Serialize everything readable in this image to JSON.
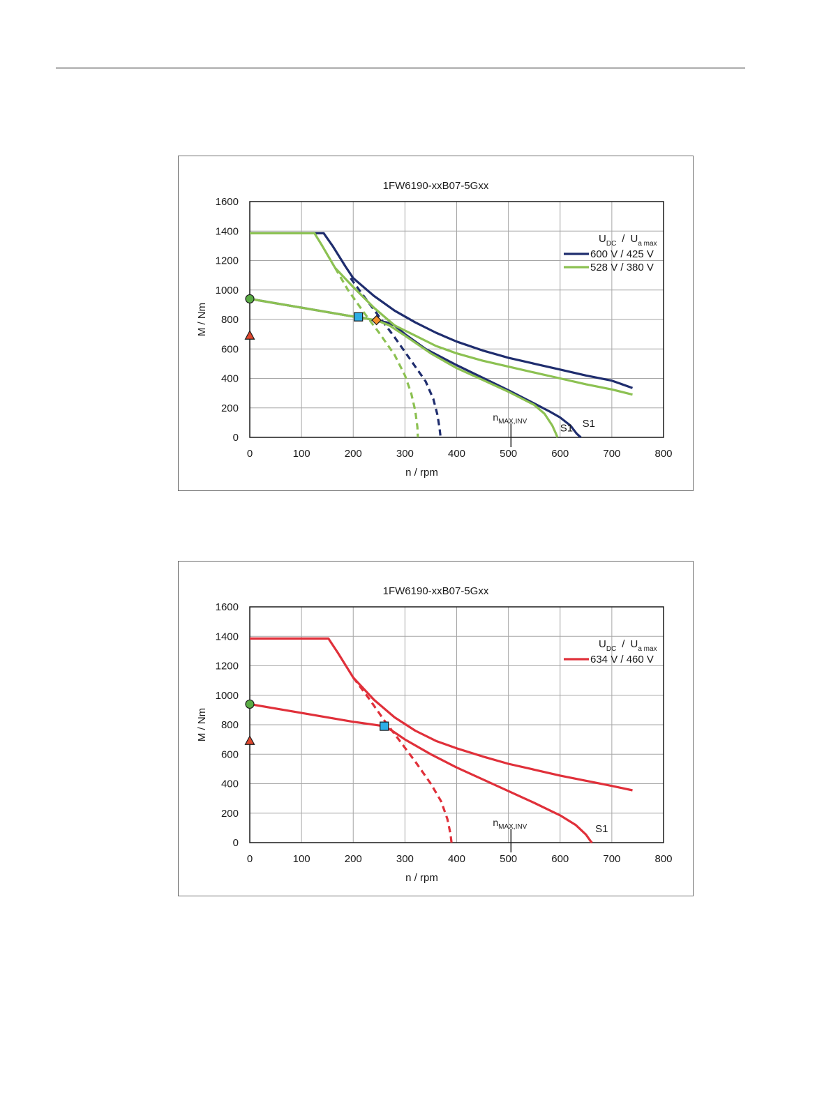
{
  "chart_data": [
    {
      "type": "line",
      "title": "1FW6190-xxB07-5Gxx",
      "xlabel": "n / rpm",
      "ylabel": "M / Nm",
      "xlim": [
        0,
        800
      ],
      "ylim": [
        0,
        1600
      ],
      "xticks": [
        0,
        100,
        200,
        300,
        400,
        500,
        600,
        700,
        800
      ],
      "yticks": [
        0,
        200,
        400,
        600,
        800,
        1000,
        1200,
        1400,
        1600
      ],
      "grid": true,
      "legend": {
        "placement": "top-right",
        "header_main": "U",
        "header_sub": "DC",
        "header_sep": "/",
        "header_main2": "U",
        "header_sub2": "a max"
      },
      "series": [
        {
          "name": "600 V / 425 V",
          "color": "#1f2d6e",
          "curves": [
            {
              "style": "solid",
              "points": [
                [
                  0,
                  1385
                ],
                [
                  143,
                  1385
                ],
                [
                  160,
                  1300
                ],
                [
                  185,
                  1160
                ],
                [
                  200,
                  1080
                ],
                [
                  240,
                  960
                ],
                [
                  280,
                  860
                ],
                [
                  320,
                  780
                ],
                [
                  360,
                  710
                ],
                [
                  400,
                  650
                ],
                [
                  450,
                  590
                ],
                [
                  500,
                  540
                ],
                [
                  550,
                  500
                ],
                [
                  600,
                  460
                ],
                [
                  650,
                  420
                ],
                [
                  700,
                  385
                ],
                [
                  740,
                  335
                ]
              ]
            },
            {
              "style": "solid",
              "points": [
                [
                  0,
                  940
                ],
                [
                  100,
                  880
                ],
                [
                  200,
                  820
                ],
                [
                  210,
                  818
                ],
                [
                  240,
                  795
                ],
                [
                  265,
                  780
                ],
                [
                  280,
                  760
                ],
                [
                  300,
                  700
                ],
                [
                  340,
                  600
                ],
                [
                  400,
                  490
                ],
                [
                  450,
                  405
                ],
                [
                  500,
                  320
                ],
                [
                  550,
                  230
                ],
                [
                  580,
                  175
                ],
                [
                  600,
                  135
                ],
                [
                  620,
                  80
                ],
                [
                  632,
                  25
                ],
                [
                  640,
                  0
                ]
              ]
            },
            {
              "style": "dashed",
              "points": [
                [
                  195,
                  1080
                ],
                [
                  220,
                  960
                ],
                [
                  250,
                  820
                ],
                [
                  280,
                  680
                ],
                [
                  310,
                  530
                ],
                [
                  340,
                  380
                ],
                [
                  355,
                  260
                ],
                [
                  363,
                  150
                ],
                [
                  367,
                  60
                ],
                [
                  369,
                  0
                ]
              ]
            }
          ]
        },
        {
          "name": "528 V / 380 V",
          "color": "#8cc152",
          "curves": [
            {
              "style": "solid",
              "points": [
                [
                  0,
                  1385
                ],
                [
                  125,
                  1385
                ],
                [
                  140,
                  1300
                ],
                [
                  165,
                  1150
                ],
                [
                  200,
                  1020
                ],
                [
                  240,
                  880
                ],
                [
                  280,
                  760
                ],
                [
                  320,
                  690
                ],
                [
                  360,
                  620
                ],
                [
                  400,
                  570
                ],
                [
                  450,
                  520
                ],
                [
                  500,
                  480
                ],
                [
                  550,
                  440
                ],
                [
                  600,
                  400
                ],
                [
                  650,
                  360
                ],
                [
                  700,
                  325
                ],
                [
                  740,
                  290
                ]
              ]
            },
            {
              "style": "solid",
              "points": [
                [
                  0,
                  940
                ],
                [
                  100,
                  880
                ],
                [
                  200,
                  820
                ],
                [
                  245,
                  795
                ],
                [
                  270,
                  760
                ],
                [
                  300,
                  690
                ],
                [
                  350,
                  570
                ],
                [
                  400,
                  470
                ],
                [
                  450,
                  390
                ],
                [
                  500,
                  310
                ],
                [
                  550,
                  220
                ],
                [
                  570,
                  160
                ],
                [
                  585,
                  80
                ],
                [
                  592,
                  25
                ],
                [
                  595,
                  0
                ]
              ]
            },
            {
              "style": "dashed",
              "points": [
                [
                  165,
                  1150
                ],
                [
                  190,
                  1000
                ],
                [
                  220,
                  850
                ],
                [
                  250,
                  710
                ],
                [
                  280,
                  560
                ],
                [
                  300,
                  420
                ],
                [
                  312,
                  300
                ],
                [
                  320,
                  180
                ],
                [
                  324,
                  70
                ],
                [
                  325,
                  0
                ]
              ]
            }
          ]
        }
      ],
      "markers": [
        {
          "shape": "circle",
          "x": 0,
          "y": 940,
          "color": "#5aac45"
        },
        {
          "shape": "triangle",
          "x": 0,
          "y": 690,
          "color": "#e0482f"
        },
        {
          "shape": "square",
          "x": 210,
          "y": 818,
          "color": "#2eaee6"
        },
        {
          "shape": "diamond",
          "x": 245,
          "y": 795,
          "color": "#f4902c"
        }
      ],
      "annotations": [
        {
          "text": "S1",
          "x": 643,
          "y": 72
        },
        {
          "text": "S1",
          "x": 600,
          "y": 40
        }
      ],
      "nmax_inv": {
        "main": "n",
        "sub": "MAX,INV",
        "x": 505
      }
    },
    {
      "type": "line",
      "title": "1FW6190-xxB07-5Gxx",
      "xlabel": "n / rpm",
      "ylabel": "M / Nm",
      "xlim": [
        0,
        800
      ],
      "ylim": [
        0,
        1600
      ],
      "xticks": [
        0,
        100,
        200,
        300,
        400,
        500,
        600,
        700,
        800
      ],
      "yticks": [
        0,
        200,
        400,
        600,
        800,
        1000,
        1200,
        1400,
        1600
      ],
      "grid": true,
      "legend": {
        "placement": "top-right",
        "header_main": "U",
        "header_sub": "DC",
        "header_sep": "/",
        "header_main2": "U",
        "header_sub2": "a max"
      },
      "series": [
        {
          "name": "634 V / 460 V",
          "color": "#e0303a",
          "curves": [
            {
              "style": "solid",
              "points": [
                [
                  0,
                  1385
                ],
                [
                  152,
                  1385
                ],
                [
                  170,
                  1290
                ],
                [
                  200,
                  1120
                ],
                [
                  240,
                  970
                ],
                [
                  280,
                  850
                ],
                [
                  320,
                  760
                ],
                [
                  360,
                  690
                ],
                [
                  400,
                  640
                ],
                [
                  450,
                  585
                ],
                [
                  500,
                  535
                ],
                [
                  550,
                  495
                ],
                [
                  600,
                  455
                ],
                [
                  650,
                  420
                ],
                [
                  700,
                  385
                ],
                [
                  740,
                  355
                ]
              ]
            },
            {
              "style": "solid",
              "points": [
                [
                  0,
                  940
                ],
                [
                  100,
                  880
                ],
                [
                  200,
                  820
                ],
                [
                  260,
                  790
                ],
                [
                  275,
                  760
                ],
                [
                  300,
                  700
                ],
                [
                  350,
                  600
                ],
                [
                  400,
                  510
                ],
                [
                  450,
                  430
                ],
                [
                  500,
                  350
                ],
                [
                  550,
                  270
                ],
                [
                  600,
                  185
                ],
                [
                  630,
                  120
                ],
                [
                  650,
                  55
                ],
                [
                  660,
                  5
                ],
                [
                  662,
                  0
                ]
              ]
            },
            {
              "style": "dashed",
              "points": [
                [
                  200,
                  1120
                ],
                [
                  230,
                  980
                ],
                [
                  260,
                  830
                ],
                [
                  290,
                  690
                ],
                [
                  320,
                  550
                ],
                [
                  350,
                  400
                ],
                [
                  370,
                  280
                ],
                [
                  382,
                  160
                ],
                [
                  388,
                  60
                ],
                [
                  390,
                  0
                ]
              ]
            }
          ]
        }
      ],
      "markers": [
        {
          "shape": "circle",
          "x": 0,
          "y": 940,
          "color": "#5aac45"
        },
        {
          "shape": "triangle",
          "x": 0,
          "y": 690,
          "color": "#e0482f"
        },
        {
          "shape": "square",
          "x": 260,
          "y": 790,
          "color": "#2eaee6"
        }
      ],
      "annotations": [
        {
          "text": "S1",
          "x": 668,
          "y": 72
        }
      ],
      "nmax_inv": {
        "main": "n",
        "sub": "MAX,INV",
        "x": 505
      }
    }
  ]
}
